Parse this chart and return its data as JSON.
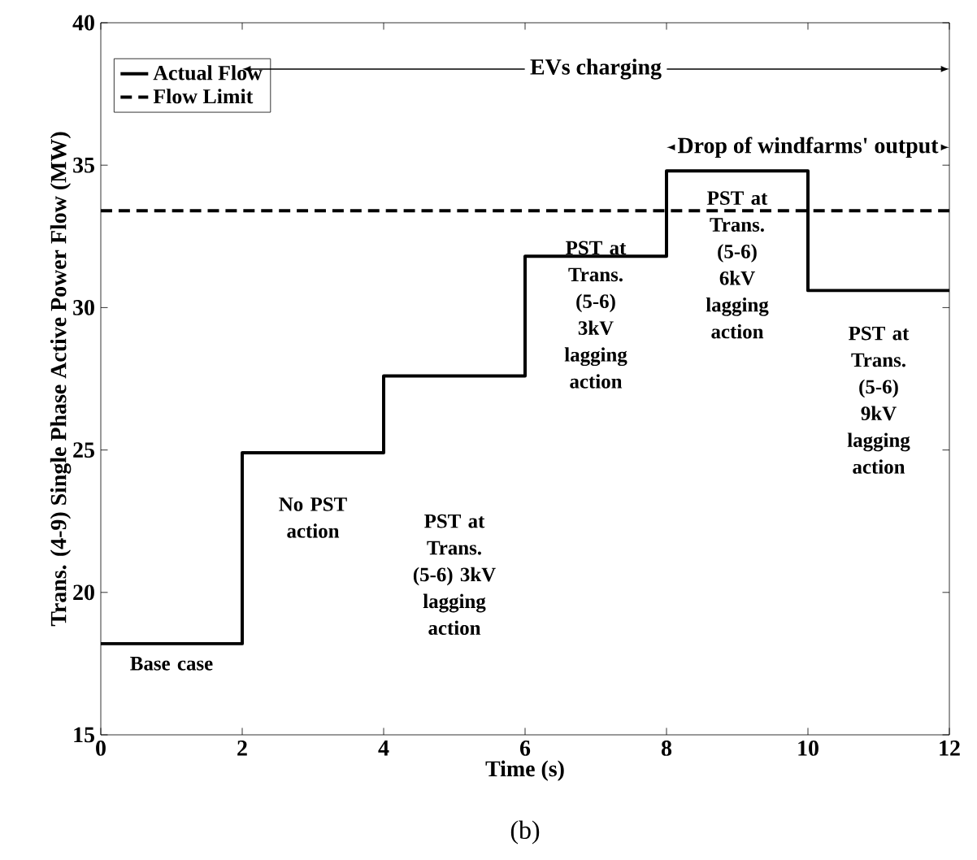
{
  "chart_data": {
    "type": "step",
    "xlabel": "Time (s)",
    "ylabel": "Trans. (4-9) Single Phase Active Power Flow (MW)",
    "xlim": [
      0,
      12
    ],
    "ylim": [
      15,
      40
    ],
    "xticks": [
      0,
      2,
      4,
      6,
      8,
      10,
      12
    ],
    "yticks": [
      15,
      20,
      25,
      30,
      35,
      40
    ],
    "series": [
      {
        "name": "Actual Flow",
        "color": "#000000",
        "x": [
          0,
          2,
          4,
          6,
          8,
          10,
          12
        ],
        "values": [
          18.2,
          24.9,
          27.6,
          31.8,
          34.8,
          30.6,
          30.6
        ],
        "line_style": "solid"
      },
      {
        "name": "Flow Limit",
        "type": "line",
        "color": "#000000",
        "x": [
          0,
          12
        ],
        "values": [
          33.4,
          33.4
        ],
        "line_style": "dashed"
      }
    ],
    "annotations": [
      "EVs charging",
      "Drop of windfarms' output",
      "Base case",
      "No PST action",
      "PST at Trans. (5-6) 3kV lagging action",
      "PST at Trans. (5-6) 3kV lagging action",
      "PST at Trans. (5-6) 6kV lagging action",
      "PST at Trans. (5-6) 9kV lagging action",
      "(b)"
    ],
    "legend": "top left",
    "grid": false
  }
}
